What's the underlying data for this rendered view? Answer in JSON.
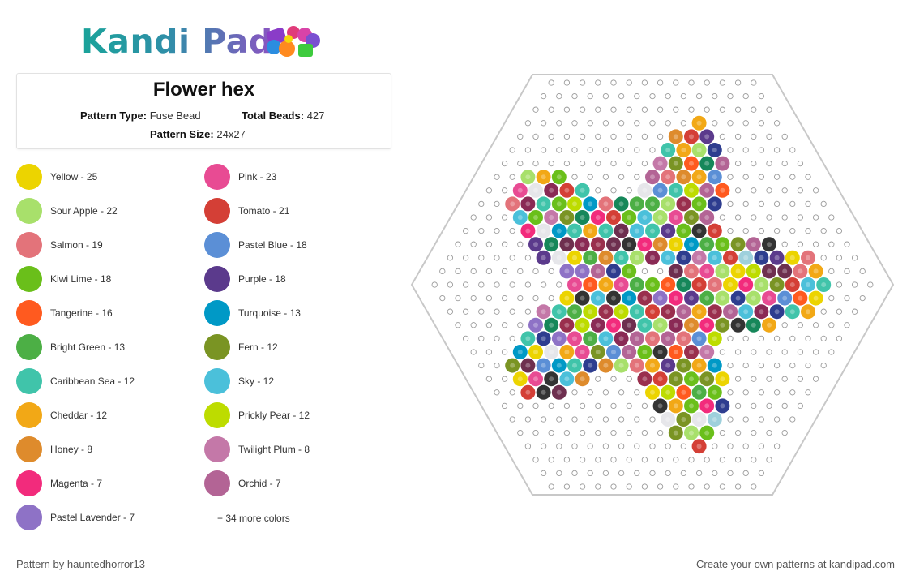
{
  "logo": {
    "text": "Kandi Pad"
  },
  "pattern": {
    "title": "Flower hex",
    "type_label": "Pattern Type:",
    "type_value": "Fuse Bead",
    "beads_label": "Total Beads:",
    "beads_value": "427",
    "size_label": "Pattern Size:",
    "size_value": "24x27"
  },
  "legend": [
    {
      "label": "Yellow - 25",
      "color": "#ecd400"
    },
    {
      "label": "Pink - 23",
      "color": "#e84b93"
    },
    {
      "label": "Sour Apple - 22",
      "color": "#a8e06b"
    },
    {
      "label": "Tomato - 21",
      "color": "#d43f36"
    },
    {
      "label": "Salmon - 19",
      "color": "#e3737a"
    },
    {
      "label": "Pastel Blue - 18",
      "color": "#5b8fd6"
    },
    {
      "label": "Kiwi Lime - 18",
      "color": "#6abf1a"
    },
    {
      "label": "Purple - 18",
      "color": "#5b3a8c"
    },
    {
      "label": "Tangerine - 16",
      "color": "#ff5a1f"
    },
    {
      "label": "Turquoise - 13",
      "color": "#0099c6"
    },
    {
      "label": "Bright Green - 13",
      "color": "#4caf45"
    },
    {
      "label": "Fern - 12",
      "color": "#7a9423"
    },
    {
      "label": "Caribbean Sea - 12",
      "color": "#40c4aa"
    },
    {
      "label": "Sky - 12",
      "color": "#4bc0da"
    },
    {
      "label": "Cheddar - 12",
      "color": "#f2a816"
    },
    {
      "label": "Prickly Pear - 12",
      "color": "#bddc00"
    },
    {
      "label": "Honey - 8",
      "color": "#de8b2c"
    },
    {
      "label": "Twilight Plum - 8",
      "color": "#c478a8"
    },
    {
      "label": "Magenta - 7",
      "color": "#f22b7c"
    },
    {
      "label": "Orchid - 7",
      "color": "#b36495"
    },
    {
      "label": "Pastel Lavender - 7",
      "color": "#8e72c6"
    }
  ],
  "more_colors": "+ 34 more colors",
  "extra_palette": [
    "#333333",
    "#16875a",
    "#9ed0dc",
    "#6e2f4f",
    "#2e3d8f",
    "#9a2f4d",
    "#e6e6ea",
    "#8a2a55"
  ],
  "footer": {
    "author": "Pattern by hauntedhorror13",
    "cta": "Create your own patterns at kandipad.com"
  }
}
